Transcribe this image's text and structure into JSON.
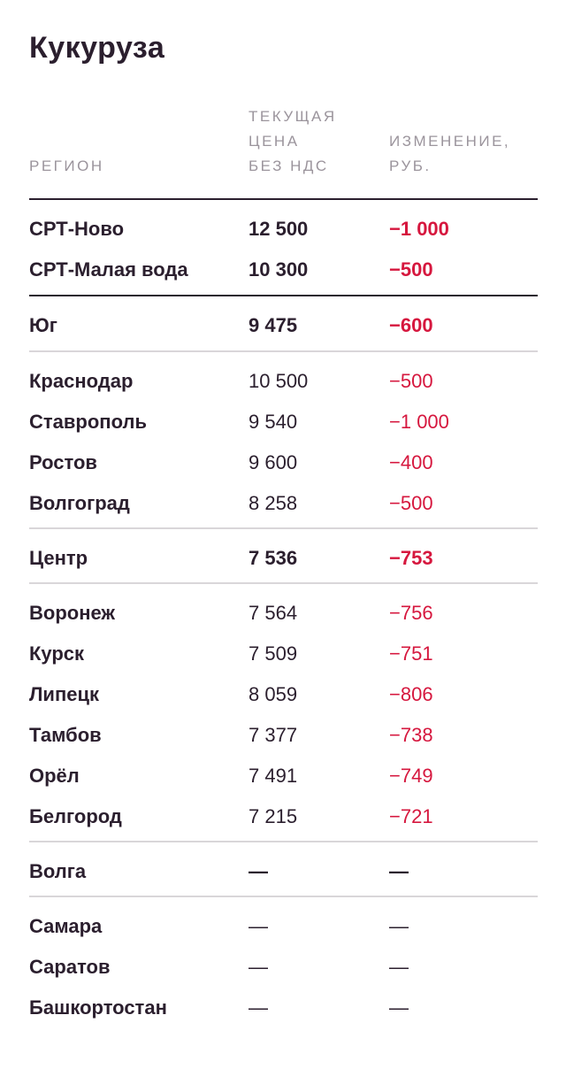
{
  "title": "Кукуруза",
  "headers": {
    "region": "РЕГИОН",
    "price": "ТЕКУЩАЯ\nЦЕНА\nБЕЗ НДС",
    "change": "ИЗМЕНЕНИЕ,\nРУБ."
  },
  "groups": [
    {
      "rows": [
        {
          "region": "СРТ-Ново",
          "price": "12 500",
          "change": "−1 000"
        },
        {
          "region": "СРТ-Малая вода",
          "price": "10 300",
          "change": "−500"
        }
      ]
    },
    {
      "rows": [
        {
          "region": "Юг",
          "price": "9 475",
          "change": "−600"
        }
      ]
    },
    {
      "rows": [
        {
          "region": "Краснодар",
          "price": "10 500",
          "change": "−500"
        },
        {
          "region": "Ставрополь",
          "price": "9 540",
          "change": "−1 000"
        },
        {
          "region": "Ростов",
          "price": "9 600",
          "change": "−400"
        },
        {
          "region": "Волгоград",
          "price": "8 258",
          "change": "−500"
        }
      ]
    },
    {
      "rows": [
        {
          "region": "Центр",
          "price": "7 536",
          "change": "−753"
        }
      ]
    },
    {
      "rows": [
        {
          "region": "Воронеж",
          "price": "7 564",
          "change": "−756"
        },
        {
          "region": "Курск",
          "price": "7 509",
          "change": "−751"
        },
        {
          "region": "Липецк",
          "price": "8 059",
          "change": "−806"
        },
        {
          "region": "Тамбов",
          "price": "7 377",
          "change": "−738"
        },
        {
          "region": "Орёл",
          "price": "7 491",
          "change": "−749"
        },
        {
          "region": "Белгород",
          "price": "7 215",
          "change": "−721"
        }
      ]
    },
    {
      "rows": [
        {
          "region": "Волга",
          "price": "—",
          "change": "—"
        }
      ]
    },
    {
      "rows": [
        {
          "region": "Самара",
          "price": "—",
          "change": "—"
        },
        {
          "region": "Саратов",
          "price": "—",
          "change": "—"
        },
        {
          "region": "Башкортостан",
          "price": "—",
          "change": "—"
        }
      ]
    }
  ]
}
